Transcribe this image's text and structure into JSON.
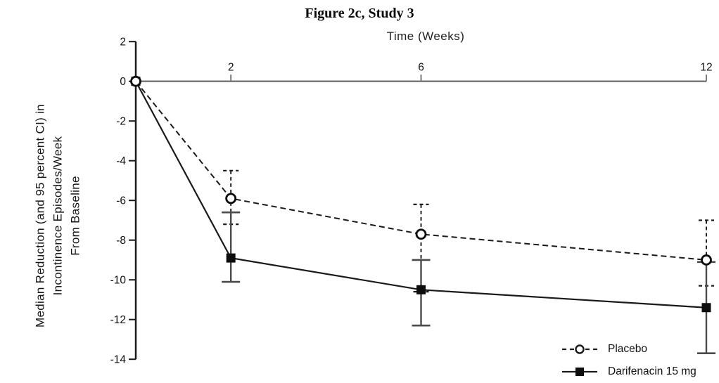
{
  "chart_data": {
    "type": "line",
    "title": "Figure 2c, Study 3",
    "xlabel": "Time (Weeks)",
    "ylabel": "Median Reduction (and 95 percent CI) in Incontinence Episodes/Week From Baseline",
    "ylabel_lines": [
      "Median Reduction (and 95 percent CI) in",
      "Incontinence Episodes/Week",
      "From Baseline"
    ],
    "x": [
      0,
      2,
      6,
      12
    ],
    "x_ticks": [
      2,
      6,
      12
    ],
    "y_ticks": [
      2,
      0,
      -2,
      -4,
      -6,
      -8,
      -10,
      -12,
      -14
    ],
    "xlim": [
      0,
      12
    ],
    "ylim": [
      -14,
      2
    ],
    "grid": false,
    "legend_position": "bottom-right",
    "series": [
      {
        "name": "Placebo",
        "marker": "open-circle",
        "line_style": "dashed",
        "color": "#1a1a1a",
        "values": [
          0,
          -5.9,
          -7.7,
          -9.0
        ],
        "ci_upper": [
          null,
          -4.5,
          -6.2,
          -7.0
        ],
        "ci_lower": [
          null,
          -7.2,
          -10.6,
          -10.3
        ]
      },
      {
        "name": "Darifenacin 15 mg",
        "marker": "filled-square",
        "line_style": "solid",
        "color": "#1a1a1a",
        "values": [
          0,
          -8.9,
          -10.5,
          -11.4
        ],
        "ci_upper": [
          null,
          -6.6,
          -9.0,
          -9.1
        ],
        "ci_lower": [
          null,
          -10.1,
          -12.3,
          -13.7
        ]
      }
    ]
  },
  "colors": {
    "axis_x": "#7a7a7a",
    "axis_y": "#1a1a1a",
    "text": "#111111",
    "error_bar_solid": "#4a4a4a"
  }
}
